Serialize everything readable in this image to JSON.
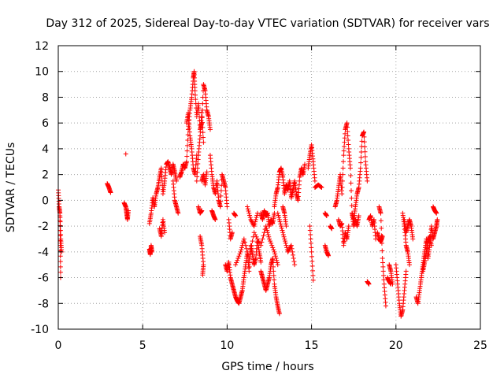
{
  "chart_data": {
    "type": "scatter",
    "title": "Day 312 of 2025, Sidereal Day-to-day VTEC variation (SDTVAR) for receiver vars",
    "xlabel": "GPS time / hours",
    "ylabel": "SDTVAR / TECUs",
    "xlim": [
      0,
      25
    ],
    "ylim": [
      -10,
      12
    ],
    "xticks": [
      0,
      5,
      10,
      15,
      20,
      25
    ],
    "yticks": [
      -10,
      -8,
      -6,
      -4,
      -2,
      0,
      2,
      4,
      6,
      8,
      10,
      12
    ],
    "grid": true,
    "marker": "+",
    "color": "#ff0000",
    "series": [
      {
        "name": "SDTVAR",
        "segments": [
          {
            "x": [
              0.0,
              0.05,
              0.1,
              0.15,
              0.2
            ],
            "y": [
              0.8,
              -0.5,
              -1.0,
              -3.0,
              -4.0
            ]
          },
          {
            "x": [
              0.1,
              0.12,
              0.14
            ],
            "y": [
              -1.2,
              -3.5,
              -6.0
            ]
          },
          {
            "x": [
              2.9,
              3.0,
              3.1
            ],
            "y": [
              1.3,
              1.0,
              0.6
            ]
          },
          {
            "x": [
              3.9,
              4.0,
              4.05,
              4.1,
              4.15
            ],
            "y": [
              -0.2,
              -0.5,
              -1.0,
              -1.5,
              -0.8
            ]
          },
          {
            "x": [
              4.0
            ],
            "y": [
              3.6
            ]
          },
          {
            "x": [
              5.4,
              5.5,
              5.6,
              5.7,
              5.8,
              5.9,
              6.0,
              6.1,
              6.2,
              6.3,
              6.4,
              6.5,
              6.6,
              6.7,
              6.8,
              6.9,
              7.0
            ],
            "y": [
              -1.8,
              -1.0,
              0.2,
              -0.5,
              0.5,
              1.0,
              1.8,
              2.5,
              0.5,
              1.5,
              2.8,
              3.0,
              2.5,
              2.0,
              2.8,
              2.2,
              1.5
            ]
          },
          {
            "x": [
              5.4,
              5.45,
              5.5,
              5.55
            ],
            "y": [
              -3.8,
              -4.2,
              -3.5,
              -4.0
            ]
          },
          {
            "x": [
              6.0,
              6.1,
              6.2,
              6.3
            ],
            "y": [
              -2.2,
              -2.8,
              -1.5,
              -2.5
            ]
          },
          {
            "x": [
              6.8,
              6.9,
              7.0,
              7.1
            ],
            "y": [
              1.5,
              0.0,
              -0.5,
              -1.0
            ]
          },
          {
            "x": [
              7.2,
              7.3,
              7.4,
              7.5,
              7.6,
              7.7,
              7.8,
              7.9,
              8.0,
              8.05,
              8.1,
              8.2,
              8.3,
              8.4,
              8.5,
              8.6,
              8.7,
              8.8,
              8.9,
              9.0
            ],
            "y": [
              1.8,
              2.2,
              2.8,
              2.5,
              3.0,
              5.5,
              7.0,
              8.0,
              9.5,
              10.0,
              8.5,
              6.5,
              7.5,
              5.5,
              6.0,
              9.0,
              8.5,
              7.0,
              6.5,
              5.5
            ]
          },
          {
            "x": [
              7.6,
              7.7,
              7.8,
              7.9,
              8.0,
              8.1,
              8.2
            ],
            "y": [
              6.0,
              6.8,
              5.0,
              4.0,
              2.5,
              2.0,
              3.5
            ]
          },
          {
            "x": [
              8.2,
              8.3,
              8.4,
              8.5,
              8.6
            ],
            "y": [
              1.5,
              3.5,
              5.0,
              6.8,
              4.5
            ]
          },
          {
            "x": [
              8.3,
              8.4,
              8.5
            ],
            "y": [
              -0.5,
              -1.0,
              -0.8
            ]
          },
          {
            "x": [
              8.4,
              8.5,
              8.6,
              8.55
            ],
            "y": [
              -2.8,
              -3.5,
              -5.0,
              -5.8
            ]
          },
          {
            "x": [
              8.5,
              8.6,
              8.7,
              8.8
            ],
            "y": [
              1.5,
              2.0,
              1.2,
              2.2
            ]
          },
          {
            "x": [
              9.0,
              9.1,
              9.2,
              9.3,
              9.4,
              9.5,
              9.6,
              9.7,
              9.8,
              9.9,
              10.0
            ],
            "y": [
              3.5,
              2.0,
              1.0,
              0.5,
              1.5,
              0.0,
              -0.5,
              2.0,
              1.5,
              1.0,
              -0.5
            ]
          },
          {
            "x": [
              9.1,
              9.2,
              9.3
            ],
            "y": [
              -0.8,
              -1.2,
              -1.5
            ]
          },
          {
            "x": [
              9.9,
              10.0,
              10.1,
              10.2,
              10.3,
              10.4,
              10.5,
              10.6,
              10.7,
              10.8,
              10.9,
              11.0,
              11.1,
              11.2,
              11.3,
              11.4,
              11.5,
              11.6,
              11.7,
              11.8,
              11.9,
              12.0
            ],
            "y": [
              -5.0,
              -5.5,
              -4.8,
              -6.0,
              -6.5,
              -7.0,
              -7.5,
              -7.8,
              -8.0,
              -7.5,
              -7.0,
              -6.0,
              -5.0,
              -4.0,
              -5.5,
              -3.5,
              -4.2,
              -5.0,
              -4.5,
              -3.0,
              -4.0,
              -4.8
            ]
          },
          {
            "x": [
              10.1,
              10.2,
              10.3
            ],
            "y": [
              -1.5,
              -3.0,
              -2.5
            ]
          },
          {
            "x": [
              10.4,
              10.5
            ],
            "y": [
              -1.0,
              -1.2
            ]
          },
          {
            "x": [
              10.5,
              10.8,
              11.0,
              11.3,
              11.6,
              12.0,
              12.3,
              12.5,
              12.8,
              13.0
            ],
            "y": [
              -5.0,
              -4.0,
              -3.0,
              -4.5,
              -2.5,
              -3.5,
              -2.0,
              -3.0,
              -4.0,
              -5.0
            ]
          },
          {
            "x": [
              11.2,
              11.4,
              11.6,
              11.8
            ],
            "y": [
              -0.5,
              -1.5,
              -2.0,
              -1.0
            ]
          },
          {
            "x": [
              12.0,
              12.1,
              12.2,
              12.3,
              12.4,
              12.5,
              12.6,
              12.7,
              12.8,
              12.9,
              13.0,
              13.1
            ],
            "y": [
              -5.5,
              -6.0,
              -6.5,
              -7.0,
              -6.5,
              -6.0,
              -5.0,
              -4.5,
              -6.5,
              -7.5,
              -8.2,
              -8.8
            ]
          },
          {
            "x": [
              12.0,
              12.1,
              12.2,
              12.3,
              12.4,
              12.5,
              12.6,
              12.7,
              12.8
            ],
            "y": [
              -1.0,
              -1.5,
              -0.8,
              -1.2,
              -1.0,
              -2.0,
              -1.5,
              -1.8,
              -1.0
            ]
          },
          {
            "x": [
              12.8,
              12.9,
              13.0,
              13.1,
              13.2,
              13.3,
              13.4,
              13.5,
              13.6,
              13.7,
              13.8,
              13.9,
              14.0,
              14.1,
              14.2,
              14.3,
              14.4,
              14.5,
              14.6
            ],
            "y": [
              -0.5,
              0.5,
              1.0,
              2.2,
              2.5,
              1.8,
              0.5,
              1.2,
              0.8,
              1.5,
              0.2,
              0.8,
              1.5,
              0.5,
              0.0,
              1.8,
              2.5,
              2.0,
              2.8
            ]
          },
          {
            "x": [
              13.0,
              13.2,
              13.4,
              13.6,
              13.8,
              14.0
            ],
            "y": [
              -1.0,
              -2.0,
              -3.0,
              -4.0,
              -3.5,
              -5.0
            ]
          },
          {
            "x": [
              13.3,
              13.4,
              13.5
            ],
            "y": [
              -0.5,
              -1.0,
              -2.0
            ]
          },
          {
            "x": [
              14.8,
              14.9,
              15.0,
              15.1,
              15.2
            ],
            "y": [
              2.5,
              3.5,
              4.3,
              3.0,
              1.5
            ]
          },
          {
            "x": [
              14.9,
              15.0,
              15.1
            ],
            "y": [
              -2.0,
              -4.0,
              -6.2
            ]
          },
          {
            "x": [
              15.2,
              15.4,
              15.6
            ],
            "y": [
              1.0,
              1.2,
              1.0
            ]
          },
          {
            "x": [
              15.8,
              15.9,
              16.0
            ],
            "y": [
              -3.5,
              -4.0,
              -4.3
            ]
          },
          {
            "x": [
              15.8,
              15.9
            ],
            "y": [
              -1.0,
              -1.2
            ]
          },
          {
            "x": [
              16.1,
              16.2
            ],
            "y": [
              -2.0,
              -2.2
            ]
          },
          {
            "x": [
              16.4,
              16.5,
              16.6,
              16.7,
              16.8,
              16.9,
              17.0,
              17.1,
              17.2,
              17.3,
              17.4,
              17.5,
              17.6,
              17.7,
              17.8,
              17.9,
              18.0,
              18.1,
              18.2,
              18.3
            ],
            "y": [
              -0.5,
              0.0,
              1.0,
              2.0,
              0.5,
              3.5,
              5.5,
              6.0,
              4.0,
              2.5,
              -1.0,
              -1.5,
              -0.5,
              0.5,
              1.0,
              2.5,
              5.0,
              5.3,
              3.0,
              1.5
            ]
          },
          {
            "x": [
              16.6,
              16.7,
              16.8,
              16.9,
              17.0,
              17.1,
              17.2
            ],
            "y": [
              -1.5,
              -2.0,
              -1.8,
              -3.5,
              -2.5,
              -3.0,
              -2.0
            ]
          },
          {
            "x": [
              17.4,
              17.5,
              17.6,
              17.7,
              17.8
            ],
            "y": [
              -1.0,
              -2.0,
              -1.5,
              -2.0,
              -1.2
            ]
          },
          {
            "x": [
              18.4,
              18.5,
              18.6,
              18.7,
              18.8
            ],
            "y": [
              -1.5,
              -1.2,
              -2.0,
              -1.5,
              -3.0
            ]
          },
          {
            "x": [
              18.3,
              18.4
            ],
            "y": [
              -6.3,
              -6.5
            ]
          },
          {
            "x": [
              18.9,
              19.0,
              19.1,
              19.2
            ],
            "y": [
              -2.5,
              -3.0,
              -3.2,
              -2.8
            ]
          },
          {
            "x": [
              19.0,
              19.1,
              19.2,
              19.3,
              19.4
            ],
            "y": [
              -0.5,
              -1.0,
              -4.5,
              -6.5,
              -8.2
            ]
          },
          {
            "x": [
              19.6,
              19.7,
              19.8
            ],
            "y": [
              -5.0,
              -5.5,
              -6.5
            ]
          },
          {
            "x": [
              19.5,
              19.6,
              19.7
            ],
            "y": [
              -6.0,
              -6.3,
              -6.5
            ]
          },
          {
            "x": [
              20.0,
              20.1,
              20.2,
              20.3,
              20.4,
              20.5,
              20.6
            ],
            "y": [
              -5.0,
              -6.5,
              -8.0,
              -9.0,
              -8.5,
              -7.0,
              -5.5
            ]
          },
          {
            "x": [
              20.4,
              20.5,
              20.6,
              20.7,
              20.8
            ],
            "y": [
              -1.0,
              -2.0,
              -3.5,
              -4.0,
              -5.0
            ]
          },
          {
            "x": [
              20.5,
              20.6,
              20.7,
              20.8,
              20.9,
              21.0
            ],
            "y": [
              -1.5,
              -2.5,
              -2.0,
              -1.5,
              -2.0,
              -3.0
            ]
          },
          {
            "x": [
              21.2,
              21.3,
              21.4,
              21.5,
              21.6,
              21.7,
              21.8,
              21.9,
              22.0,
              22.1,
              22.2,
              22.3,
              22.4,
              22.45
            ],
            "y": [
              -7.5,
              -8.0,
              -7.0,
              -6.0,
              -5.0,
              -4.0,
              -3.0,
              -4.5,
              -3.5,
              -2.0,
              -3.0,
              -2.5,
              -2.0,
              -1.5
            ]
          },
          {
            "x": [
              21.6,
              21.7,
              21.8,
              21.9,
              22.0,
              22.1
            ],
            "y": [
              -5.5,
              -4.8,
              -4.0,
              -3.2,
              -2.8,
              -3.5
            ]
          },
          {
            "x": [
              22.2,
              22.3,
              22.4
            ],
            "y": [
              -0.5,
              -0.8,
              -1.0
            ]
          }
        ]
      }
    ]
  }
}
